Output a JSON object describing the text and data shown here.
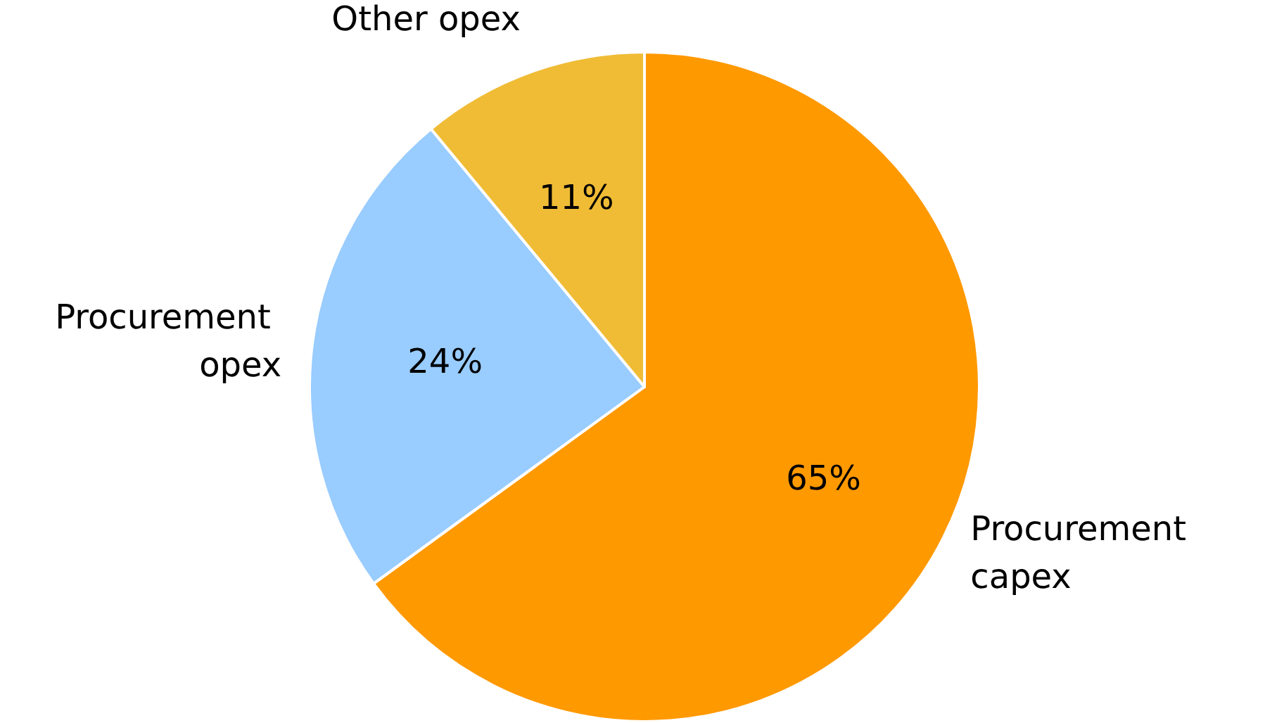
{
  "chart_data": {
    "type": "pie",
    "categories": [
      "Procurement capex",
      "Procurement opex",
      "Other opex"
    ],
    "values": [
      65,
      24,
      11
    ],
    "value_labels": [
      "65%",
      "24%",
      "11%"
    ],
    "colors": [
      "#ff9900",
      "#99ccff",
      "#f0bc35"
    ]
  }
}
